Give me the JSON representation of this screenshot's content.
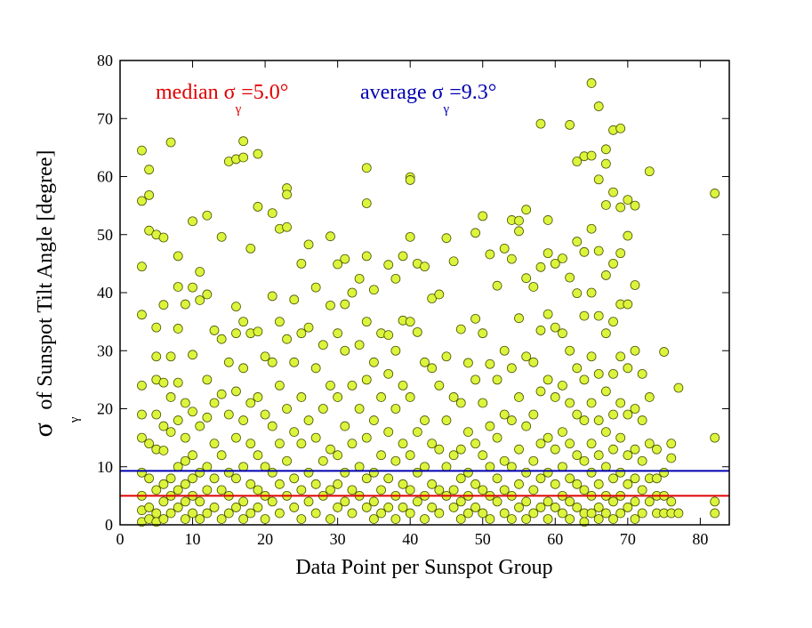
{
  "chart_data": {
    "type": "scatter",
    "xlabel": "Data Point per Sunspot Group",
    "ylabel": {
      "symbol": "σ",
      "sub": "γ",
      "text": "of Sunspot Tilt Angle [degree]"
    },
    "annotations": [
      {
        "text": "median σ",
        "sub": "γ",
        "rest": "=5.0°",
        "color": "#e00000"
      },
      {
        "text": "average σ",
        "sub": "γ",
        "rest": "=9.3°",
        "color": "#0000b0"
      }
    ],
    "hlines": [
      {
        "value": 5.0,
        "color": "#e00000"
      },
      {
        "value": 9.3,
        "color": "#0000b0"
      }
    ],
    "xlim": [
      0,
      84
    ],
    "ylim": [
      0,
      80
    ],
    "xticks": [
      0,
      10,
      20,
      30,
      40,
      50,
      60,
      70,
      80
    ],
    "yticks": [
      0,
      10,
      20,
      30,
      40,
      50,
      60,
      70,
      80
    ],
    "marker": {
      "fill": "#dcf53c",
      "stroke": "#4a5200"
    },
    "x": [
      3,
      3,
      3,
      3,
      3,
      3,
      3,
      3,
      3,
      3,
      3,
      4,
      4,
      4,
      4,
      4,
      4,
      4,
      5,
      5,
      5,
      5,
      5,
      5,
      5,
      5,
      5,
      6,
      6,
      6,
      6,
      6,
      6,
      6,
      6,
      7,
      7,
      7,
      7,
      7,
      7,
      7,
      8,
      8,
      8,
      8,
      8,
      8,
      8,
      8,
      9,
      9,
      9,
      9,
      9,
      9,
      9,
      10,
      10,
      10,
      10,
      10,
      10,
      10,
      10,
      11,
      11,
      11,
      11,
      11,
      11,
      12,
      12,
      12,
      12,
      12,
      12,
      12,
      13,
      13,
      13,
      13,
      13,
      14,
      14,
      14,
      14,
      14,
      14,
      15,
      15,
      15,
      15,
      15,
      15,
      16,
      16,
      16,
      16,
      16,
      16,
      16,
      17,
      17,
      17,
      17,
      17,
      17,
      17,
      17,
      18,
      18,
      18,
      18,
      18,
      18,
      19,
      19,
      19,
      19,
      19,
      19,
      19,
      20,
      20,
      20,
      20,
      20,
      21,
      21,
      21,
      21,
      21,
      21,
      22,
      22,
      22,
      22,
      22,
      22,
      23,
      23,
      23,
      23,
      23,
      23,
      23,
      24,
      24,
      24,
      24,
      24,
      25,
      25,
      25,
      25,
      25,
      25,
      26,
      26,
      26,
      26,
      26,
      27,
      27,
      27,
      27,
      27,
      28,
      28,
      28,
      28,
      29,
      29,
      29,
      29,
      29,
      29,
      30,
      30,
      30,
      30,
      30,
      30,
      31,
      31,
      31,
      31,
      31,
      31,
      32,
      32,
      32,
      32,
      32,
      33,
      33,
      33,
      33,
      33,
      34,
      34,
      34,
      34,
      34,
      34,
      34,
      34,
      35,
      35,
      35,
      35,
      35,
      35,
      36,
      36,
      36,
      36,
      36,
      37,
      37,
      37,
      37,
      37,
      37,
      38,
      38,
      38,
      38,
      38,
      38,
      39,
      39,
      39,
      39,
      39,
      39,
      40,
      40,
      40,
      40,
      40,
      40,
      40,
      40,
      41,
      41,
      41,
      41,
      41,
      42,
      42,
      42,
      42,
      42,
      42,
      43,
      43,
      43,
      43,
      43,
      44,
      44,
      44,
      44,
      44,
      45,
      45,
      45,
      45,
      45,
      46,
      46,
      46,
      46,
      46,
      47,
      47,
      47,
      47,
      47,
      47,
      48,
      48,
      48,
      48,
      48,
      49,
      49,
      49,
      49,
      49,
      49,
      50,
      50,
      50,
      50,
      50,
      50,
      51,
      51,
      51,
      51,
      51,
      51,
      52,
      52,
      52,
      52,
      52,
      53,
      53,
      53,
      53,
      53,
      53,
      54,
      54,
      54,
      54,
      54,
      54,
      54,
      55,
      55,
      55,
      55,
      55,
      55,
      55,
      56,
      56,
      56,
      56,
      56,
      56,
      56,
      57,
      57,
      57,
      57,
      57,
      57,
      58,
      58,
      58,
      58,
      58,
      58,
      58,
      59,
      59,
      59,
      59,
      59,
      59,
      59,
      59,
      60,
      60,
      60,
      60,
      60,
      60,
      61,
      61,
      61,
      61,
      61,
      61,
      61,
      62,
      62,
      62,
      62,
      62,
      62,
      62,
      62,
      63,
      63,
      63,
      63,
      63,
      63,
      63,
      63,
      64,
      64,
      64,
      64,
      64,
      64,
      64,
      64,
      64,
      65,
      65,
      65,
      65,
      65,
      65,
      65,
      65,
      65,
      65,
      66,
      66,
      66,
      66,
      66,
      66,
      66,
      66,
      66,
      66,
      67,
      67,
      67,
      67,
      67,
      67,
      67,
      67,
      67,
      67,
      68,
      68,
      68,
      68,
      68,
      68,
      68,
      68,
      68,
      68,
      69,
      69,
      69,
      69,
      69,
      69,
      69,
      69,
      69,
      69,
      70,
      70,
      70,
      70,
      70,
      70,
      70,
      70,
      71,
      71,
      71,
      71,
      71,
      71,
      71,
      71,
      72,
      72,
      72,
      72,
      72,
      73,
      73,
      73,
      73,
      73,
      74,
      74,
      74,
      74,
      75,
      75,
      75,
      75,
      76,
      76,
      76,
      76,
      77,
      77,
      82,
      82,
      82,
      82
    ],
    "values": [
      64.5,
      55.8,
      44.5,
      36.2,
      24,
      19,
      15,
      9,
      5,
      2.5,
      0.5,
      61.2,
      56.8,
      50.7,
      14,
      8,
      3,
      1,
      50,
      34,
      29,
      25,
      19,
      13,
      6,
      2,
      0.5,
      49.5,
      37.9,
      24.5,
      17,
      12.8,
      7,
      4,
      1,
      65.9,
      29,
      22,
      16,
      8,
      5,
      2,
      46.3,
      41,
      33.8,
      24.5,
      18,
      10,
      6,
      3,
      38,
      21,
      15,
      11,
      7,
      4,
      1,
      52.3,
      40.9,
      29.3,
      19.5,
      12,
      8,
      5,
      2,
      43.6,
      38.7,
      17,
      9,
      4,
      1,
      53.3,
      39.7,
      25,
      18.5,
      10,
      6,
      2,
      33.5,
      21,
      14,
      8,
      3,
      49.6,
      32,
      22.5,
      12,
      6,
      1,
      62.6,
      28,
      19,
      9,
      5,
      2,
      63,
      37.6,
      33,
      23,
      15,
      8,
      3,
      66.1,
      63.3,
      35,
      27,
      18,
      10,
      4,
      1,
      47.6,
      33,
      21,
      14,
      7,
      2,
      63.9,
      54.8,
      33.3,
      22,
      12,
      6,
      3,
      29,
      19,
      10,
      5,
      1,
      53.7,
      39.4,
      28,
      17,
      9,
      4,
      51,
      35,
      24,
      14,
      7,
      2,
      58,
      56.9,
      51.3,
      32,
      20,
      11,
      5,
      38.8,
      28,
      16,
      8,
      3,
      45,
      33,
      22,
      14,
      6,
      1,
      48.3,
      34,
      18,
      9,
      4,
      40.9,
      27,
      15,
      7,
      2,
      31,
      20,
      11,
      5,
      49.7,
      37.8,
      24,
      13,
      6,
      1,
      44.9,
      33,
      22,
      12,
      7,
      3,
      45.8,
      38,
      30,
      17,
      9,
      4,
      40,
      24,
      14,
      6,
      2,
      42.4,
      31,
      20,
      10,
      5,
      61.5,
      55.4,
      46.3,
      35,
      25,
      15,
      8,
      3,
      40.5,
      28,
      18,
      9,
      4,
      1,
      33,
      22,
      12,
      6,
      2,
      44.8,
      32.7,
      26,
      16,
      8,
      3,
      42.4,
      30,
      20,
      11,
      5,
      1,
      46.3,
      35.2,
      24,
      14,
      7,
      3,
      59.9,
      59.4,
      49.6,
      35,
      22,
      12,
      6,
      2,
      45,
      33.2,
      16,
      9,
      4,
      44.5,
      28,
      18,
      10,
      5,
      1,
      39,
      27,
      14,
      7,
      3,
      39.7,
      24,
      13,
      6,
      2,
      49.4,
      29,
      18,
      10,
      5,
      45.4,
      22,
      12,
      6,
      3,
      33.7,
      21,
      13,
      8,
      4,
      1,
      27.9,
      16,
      9,
      5,
      2,
      50.3,
      35.5,
      25,
      14,
      7,
      3,
      53.2,
      33,
      21,
      12,
      6,
      2,
      46.6,
      27.7,
      17,
      10,
      5,
      1,
      41.2,
      25,
      15,
      8,
      4,
      47.6,
      30,
      19,
      11,
      6,
      2,
      52.5,
      45.8,
      27,
      18,
      10,
      5,
      1,
      52.4,
      50.6,
      35.6,
      22,
      13,
      7,
      3,
      54.3,
      42.5,
      29,
      17,
      9,
      4,
      1,
      41,
      28,
      19,
      11,
      6,
      2,
      69.1,
      44.4,
      33.5,
      23,
      14,
      8,
      3,
      52.5,
      46.8,
      36.3,
      25,
      15,
      9,
      4,
      1,
      45,
      34,
      22,
      13,
      7,
      3,
      45.9,
      33,
      24,
      16,
      10,
      5,
      2,
      68.9,
      42.6,
      30,
      21,
      14,
      8,
      4,
      1,
      62.6,
      48.8,
      39.9,
      27,
      19,
      12,
      7,
      3,
      63.5,
      47,
      36,
      25,
      18,
      11,
      6,
      2,
      0.5,
      76.1,
      63.6,
      51,
      40,
      29,
      21,
      14,
      9,
      5,
      2,
      72.1,
      59.5,
      47.2,
      36,
      26,
      18,
      12,
      7,
      3,
      1,
      64.7,
      62.2,
      55.1,
      43,
      33,
      23,
      16,
      10,
      5,
      2,
      68,
      57.3,
      45,
      35,
      26,
      19,
      13,
      8,
      4,
      1,
      68.3,
      54.7,
      46.8,
      38,
      29,
      21,
      15,
      9,
      5,
      2,
      56,
      49.8,
      38,
      27,
      19,
      12,
      7,
      3,
      55,
      41.3,
      30,
      20,
      13,
      8,
      4,
      1,
      26,
      18,
      11,
      6,
      2,
      60.9,
      22,
      14,
      8,
      4,
      13,
      8,
      5,
      2,
      29.8,
      9,
      5,
      2,
      14,
      11.5,
      4,
      2,
      23.6,
      2,
      57.1,
      15,
      4,
      2
    ]
  }
}
